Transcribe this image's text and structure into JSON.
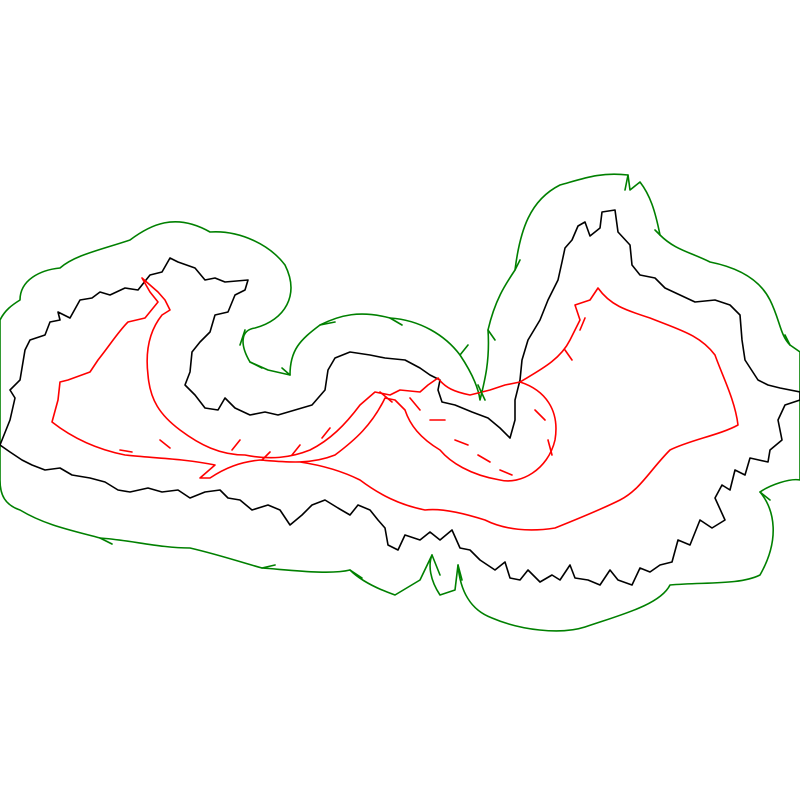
{
  "figure": {
    "background": "#ffffff",
    "outlines": [
      {
        "role": "original",
        "color": "#000000"
      },
      {
        "role": "outer-buffer",
        "color": "#008000"
      },
      {
        "role": "inner-buffer",
        "color": "#ff0000"
      }
    ]
  }
}
